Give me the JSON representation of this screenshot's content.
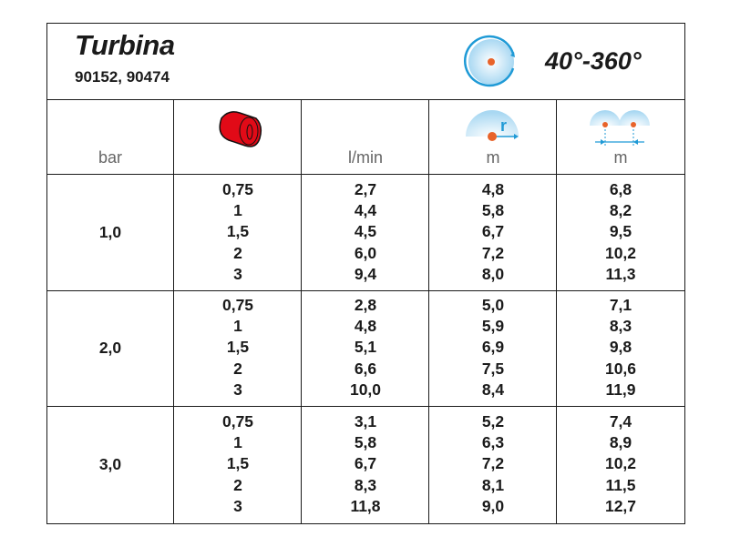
{
  "header": {
    "title": "Turbina",
    "codes": "90152, 90474",
    "angle": "40°-360°",
    "rotation_icon": "rotation-circle-icon"
  },
  "columns": [
    {
      "unit": "bar"
    },
    {
      "unit": "",
      "icon": "nozzle-icon"
    },
    {
      "unit": "l/min"
    },
    {
      "unit": "m",
      "icon": "radius-icon",
      "icon_label": "r"
    },
    {
      "unit": "m",
      "icon": "spacing-icon"
    }
  ],
  "groups": [
    {
      "bar": "1,0",
      "nozzle": [
        "0,75",
        "1",
        "1,5",
        "2",
        "3"
      ],
      "flow": [
        "2,7",
        "4,4",
        "4,5",
        "6,0",
        "9,4"
      ],
      "radius": [
        "4,8",
        "5,8",
        "6,7",
        "7,2",
        "8,0"
      ],
      "spacing": [
        "6,8",
        "8,2",
        "9,5",
        "10,2",
        "11,3"
      ]
    },
    {
      "bar": "2,0",
      "nozzle": [
        "0,75",
        "1",
        "1,5",
        "2",
        "3"
      ],
      "flow": [
        "2,8",
        "4,8",
        "5,1",
        "6,6",
        "10,0"
      ],
      "radius": [
        "5,0",
        "5,9",
        "6,9",
        "7,5",
        "8,4"
      ],
      "spacing": [
        "7,1",
        "8,3",
        "9,8",
        "10,6",
        "11,9"
      ]
    },
    {
      "bar": "3,0",
      "nozzle": [
        "0,75",
        "1",
        "1,5",
        "2",
        "3"
      ],
      "flow": [
        "3,1",
        "5,8",
        "6,7",
        "8,3",
        "11,8"
      ],
      "radius": [
        "5,2",
        "6,3",
        "7,2",
        "8,1",
        "9,0"
      ],
      "spacing": [
        "7,4",
        "8,9",
        "10,2",
        "11,5",
        "12,7"
      ]
    }
  ],
  "colors": {
    "accent_blue": "#1f9ad6",
    "dot_orange": "#e8632a",
    "nozzle_red": "#e10a17"
  }
}
